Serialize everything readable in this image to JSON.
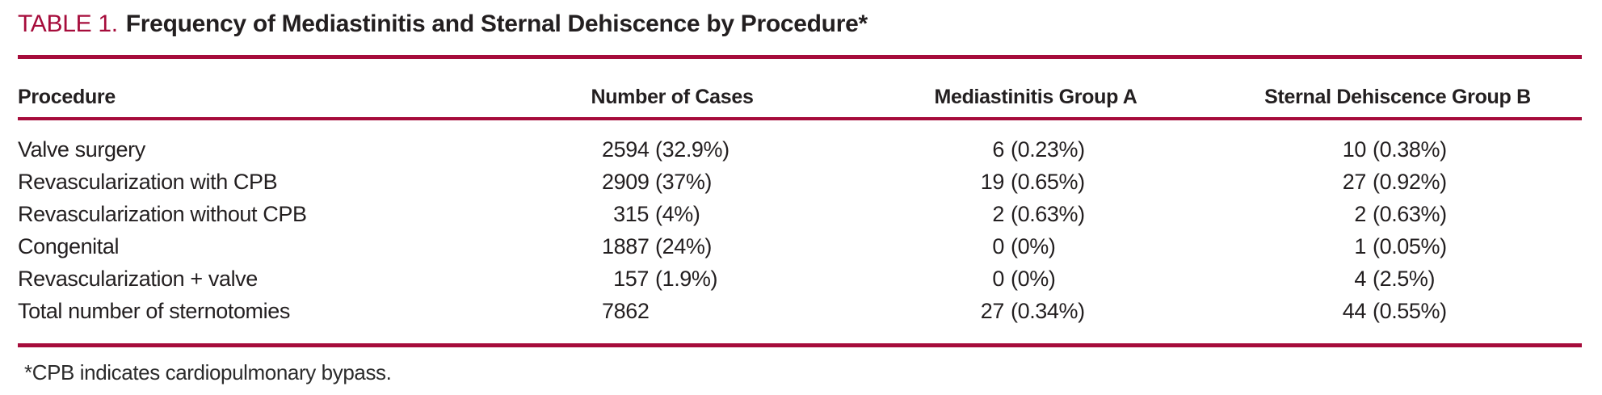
{
  "accent_color": "#a60c3b",
  "text_color": "#231f20",
  "title": {
    "label": "TABLE 1.",
    "text": "Frequency of Mediastinitis and Sternal Dehiscence by Procedure*"
  },
  "table": {
    "columns": [
      "Procedure",
      "Number of Cases",
      "Mediastinitis Group A",
      "Sternal Dehiscence Group B"
    ],
    "rows": [
      {
        "procedure": "Valve surgery",
        "cases_n": "2594",
        "cases_pct": "(32.9%)",
        "groupA_n": "6",
        "groupA_pct": "(0.23%)",
        "groupB_n": "10",
        "groupB_pct": "(0.38%)"
      },
      {
        "procedure": "Revascularization with CPB",
        "cases_n": "2909",
        "cases_pct": "(37%)",
        "groupA_n": "19",
        "groupA_pct": "(0.65%)",
        "groupB_n": "27",
        "groupB_pct": "(0.92%)"
      },
      {
        "procedure": "Revascularization without CPB",
        "cases_n": "315",
        "cases_pct": "(4%)",
        "groupA_n": "2",
        "groupA_pct": "(0.63%)",
        "groupB_n": "2",
        "groupB_pct": "(0.63%)"
      },
      {
        "procedure": "Congenital",
        "cases_n": "1887",
        "cases_pct": "(24%)",
        "groupA_n": "0",
        "groupA_pct": "(0%)",
        "groupB_n": "1",
        "groupB_pct": "(0.05%)"
      },
      {
        "procedure": "Revascularization + valve",
        "cases_n": "157",
        "cases_pct": "(1.9%)",
        "groupA_n": "0",
        "groupA_pct": "(0%)",
        "groupB_n": "4",
        "groupB_pct": "(2.5%)"
      },
      {
        "procedure": "Total number of sternotomies",
        "cases_n": "7862",
        "cases_pct": "",
        "groupA_n": "27",
        "groupA_pct": "(0.34%)",
        "groupB_n": "44",
        "groupB_pct": "(0.55%)"
      }
    ]
  },
  "footnote": "*CPB indicates cardiopulmonary bypass."
}
